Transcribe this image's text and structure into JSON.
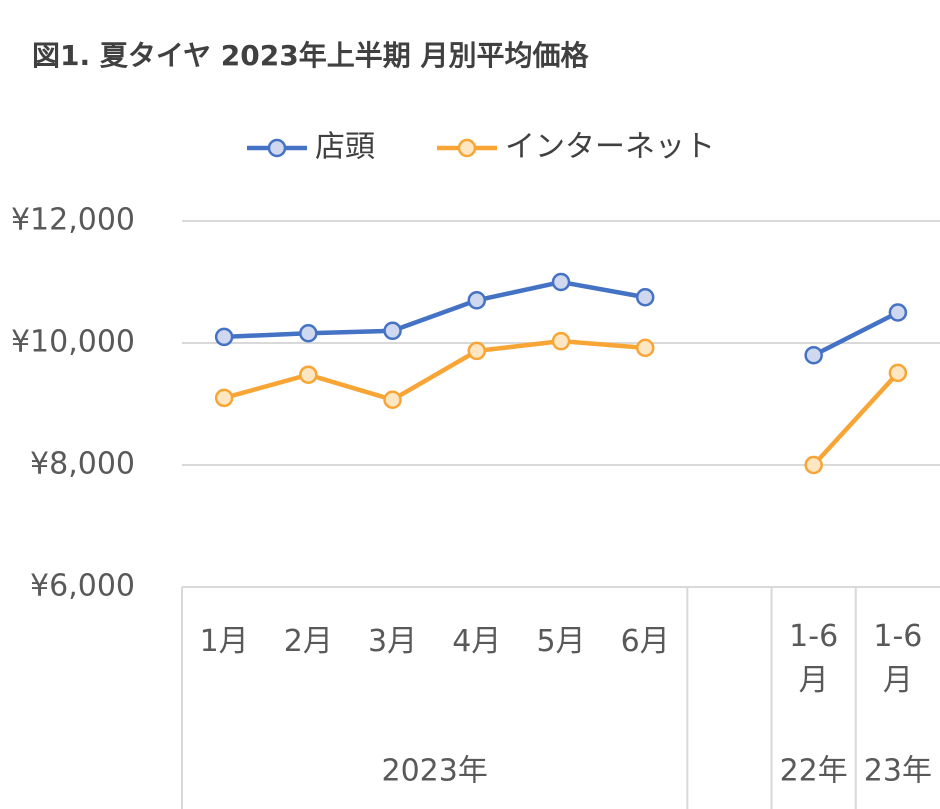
{
  "chart_data": {
    "type": "line",
    "title": "図1. 夏タイヤ 2023年上半期 月別平均価格",
    "categories": [
      "1月",
      "2月",
      "3月",
      "4月",
      "5月",
      "6月",
      null,
      "1-6月",
      "1-6月"
    ],
    "groups": [
      "2023年",
      "22年",
      "23年"
    ],
    "series": [
      {
        "name": "店頭",
        "color": "#4472c4",
        "values": [
          10100,
          10160,
          10200,
          10700,
          11000,
          10750,
          null,
          9800,
          10500
        ]
      },
      {
        "name": "インターネット",
        "color": "#f8a535",
        "values": [
          9100,
          9480,
          9070,
          9870,
          10030,
          9920,
          null,
          8000,
          9510
        ]
      }
    ],
    "ylim": [
      6000,
      12000
    ],
    "yticks": [
      {
        "value": 6000,
        "label": "¥6,000"
      },
      {
        "value": 8000,
        "label": "¥8,000"
      },
      {
        "value": 10000,
        "label": "¥10,000"
      },
      {
        "value": 12000,
        "label": "¥12,000"
      }
    ],
    "grid": true,
    "legend": "top"
  }
}
